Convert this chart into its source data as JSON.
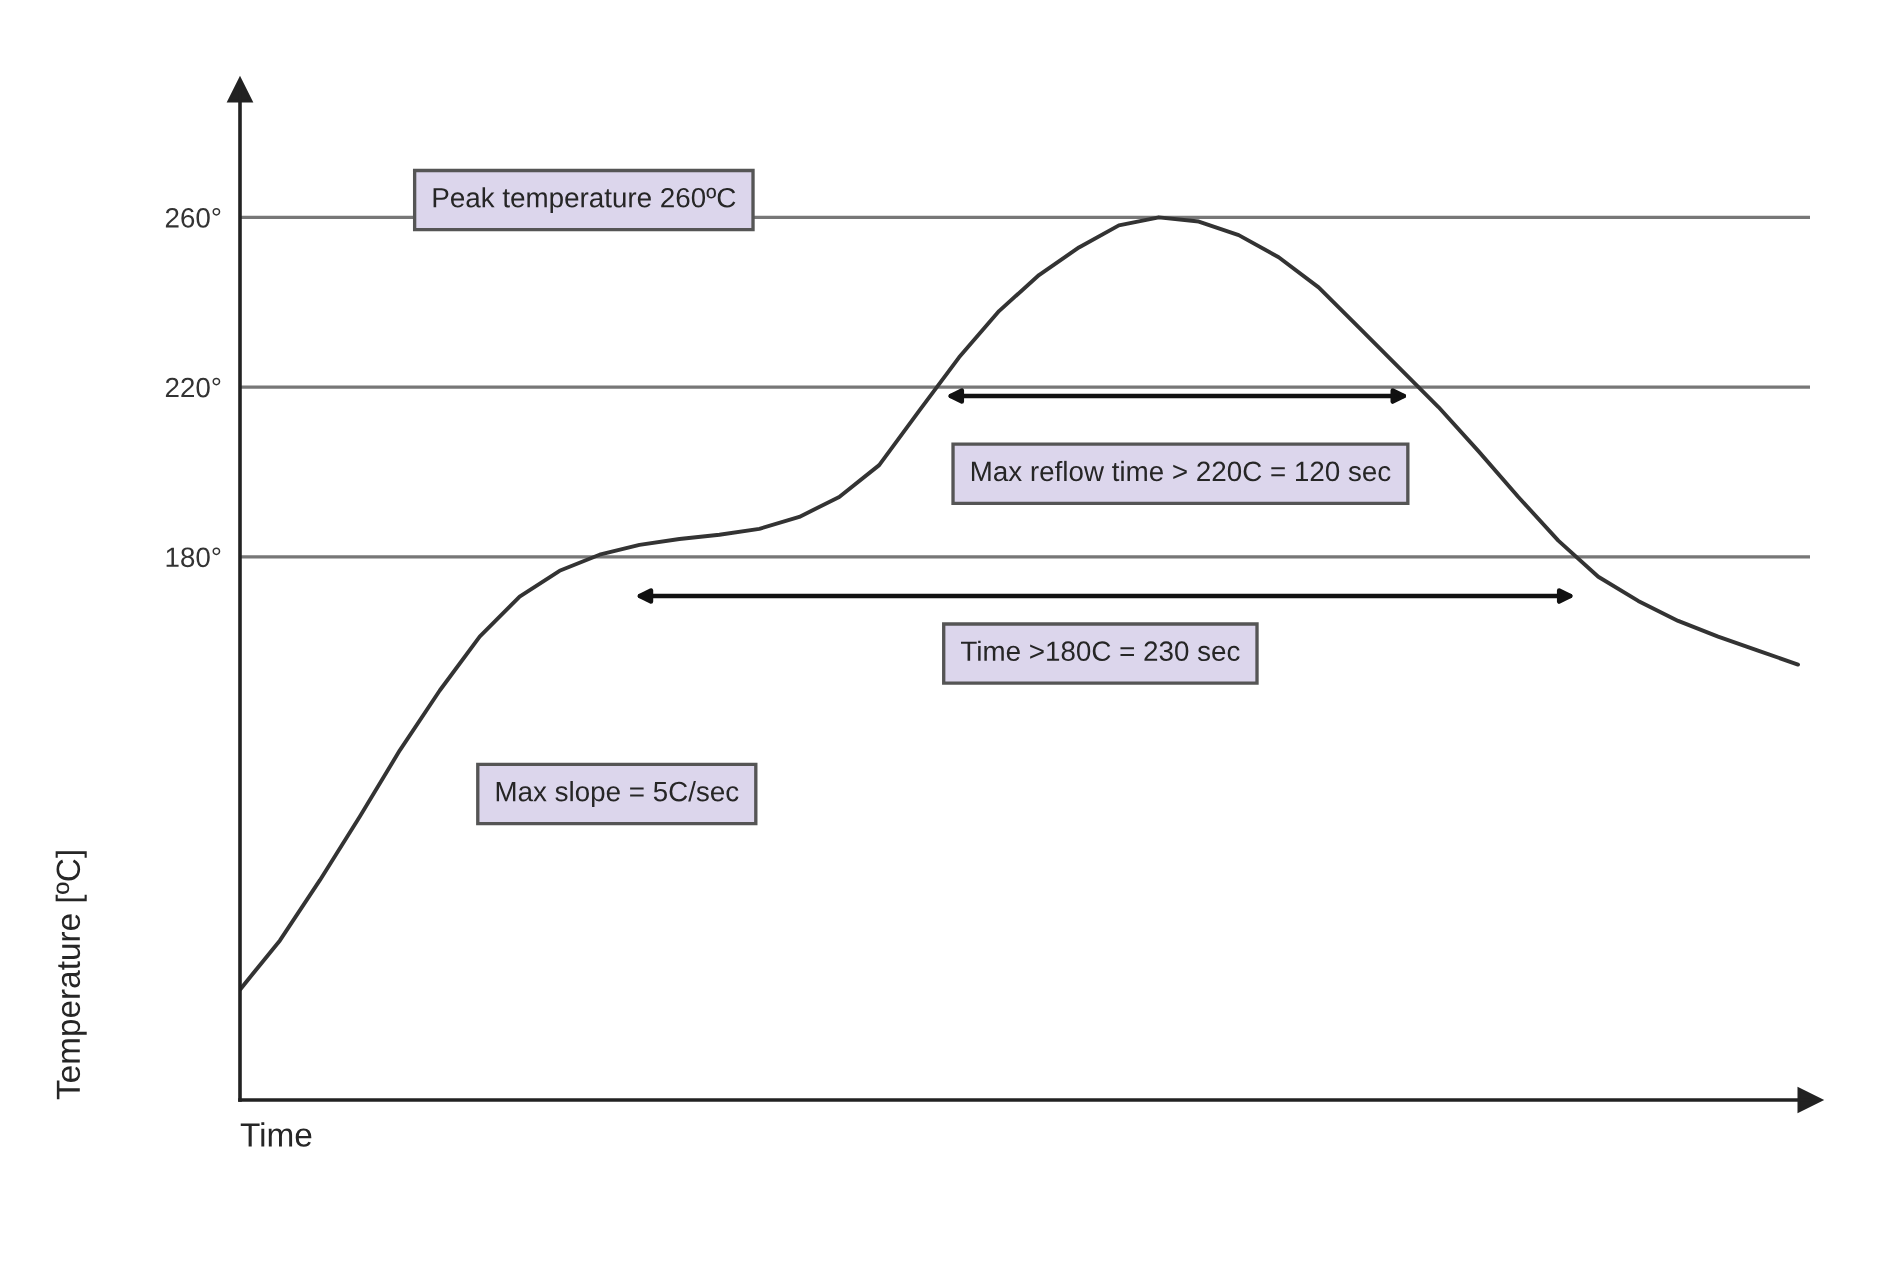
{
  "chart_data": {
    "type": "line",
    "xlabel": "Time",
    "ylabel": "Temperature [ºC]",
    "categories": [
      null,
      null,
      null,
      null,
      null,
      null,
      null,
      null,
      null,
      null,
      null,
      null,
      null,
      null,
      null,
      null,
      null,
      null,
      null,
      null,
      null,
      null,
      null,
      null,
      null,
      null,
      null,
      null,
      null,
      null,
      null,
      null,
      null,
      null,
      null,
      null,
      null,
      null,
      null,
      null
    ],
    "series": [
      {
        "color": "#333333",
        "values": [
          78,
          89.6,
          103.8,
          118.8,
          134.4,
          148.5,
          161.2,
          170.6,
          176.7,
          180.5,
          182.8,
          184.2,
          185.2,
          186.6,
          189.4,
          194.1,
          201.6,
          214.4,
          227,
          237.9,
          246.4,
          252.9,
          258.1,
          260,
          259,
          255.8,
          250.6,
          243.5,
          234.1,
          224.7,
          215.3,
          204.9,
          194.1,
          183.8,
          175.3,
          169.6,
          164.9,
          161.2,
          157.9,
          154.6
        ]
      }
    ],
    "ylim": [
      52,
      290
    ],
    "yticks": [
      {
        "value": 180,
        "label": "180°"
      },
      {
        "value": 220,
        "label": "220°"
      },
      {
        "value": 260,
        "label": "260°"
      }
    ],
    "tick_labels": "y",
    "ref_lines": [
      {
        "axis": "y",
        "value": 260,
        "color": "#777777"
      },
      {
        "axis": "y",
        "value": 220,
        "color": "#777777"
      },
      {
        "axis": "y",
        "value": 180,
        "color": "#777777"
      }
    ],
    "annotations": [
      "Peak temperature 260ºC",
      "Max reflow time > 220C = 120 sec",
      "Time >180C = 230 sec",
      "Max slope = 5C/sec"
    ]
  }
}
